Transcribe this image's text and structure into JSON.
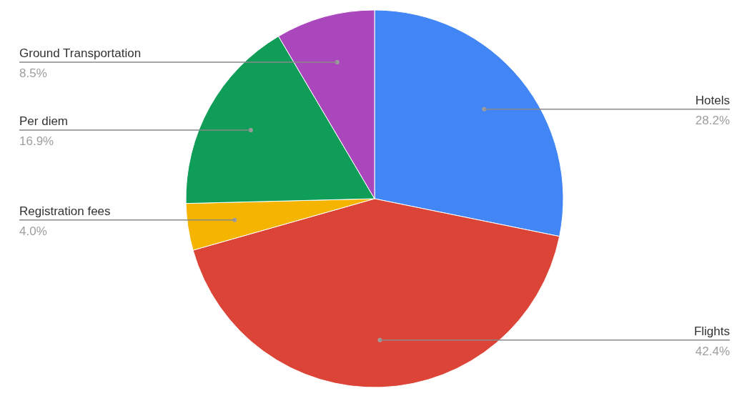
{
  "chart_data": {
    "type": "pie",
    "categories": [
      "Hotels",
      "Flights",
      "Registration fees",
      "Per diem",
      "Ground Transportation"
    ],
    "values": [
      28.2,
      42.4,
      4.0,
      16.9,
      8.5
    ],
    "value_labels": [
      "28.2%",
      "42.4%",
      "4.0%",
      "16.9%",
      "8.5%"
    ],
    "colors": [
      "#4285f4",
      "#db4437",
      "#f4b400",
      "#0f9d58",
      "#ab47bc"
    ]
  }
}
